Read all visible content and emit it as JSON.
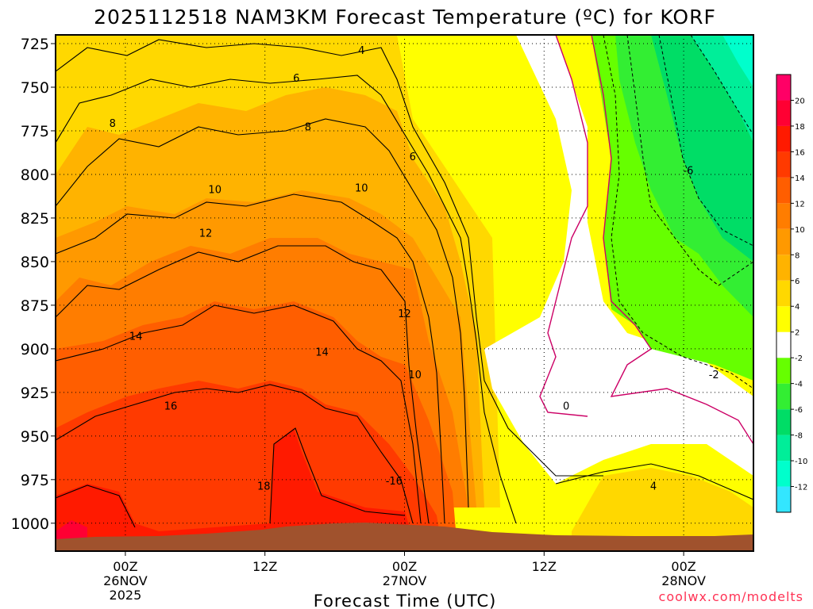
{
  "chart_data": {
    "type": "heatmap",
    "title": "2025112518 NAM3KM Forecast Temperature (ºC) for KORF",
    "xlabel": "Forecast Time (UTC)",
    "ylabel": "",
    "x_ticks": [
      {
        "hour": 6,
        "lines": [
          "00Z",
          "26NOV",
          "2025"
        ]
      },
      {
        "hour": 18,
        "lines": [
          "12Z"
        ]
      },
      {
        "hour": 30,
        "lines": [
          "00Z",
          "27NOV"
        ]
      },
      {
        "hour": 42,
        "lines": [
          "12Z"
        ]
      },
      {
        "hour": 54,
        "lines": [
          "00Z",
          "28NOV"
        ]
      }
    ],
    "xlim": [
      0,
      60
    ],
    "y_ticks": [
      725,
      750,
      775,
      800,
      825,
      850,
      875,
      900,
      925,
      950,
      975,
      1000
    ],
    "ylim": [
      1016,
      720
    ],
    "grid": true,
    "colorbar": {
      "levels": [
        -14,
        -12,
        -10,
        -8,
        -6,
        -4,
        -2,
        2,
        4,
        6,
        8,
        10,
        12,
        14,
        16,
        18,
        20,
        22
      ],
      "labels": [
        "-12",
        "-10",
        "-8",
        "-6",
        "-4",
        "-2",
        "2",
        "4",
        "6",
        "8",
        "10",
        "12",
        "14",
        "16",
        "18",
        "20"
      ],
      "colors": [
        "#33e6ff",
        "#00ffcc",
        "#00ee99",
        "#00dd66",
        "#33ee33",
        "#66ff00",
        "#ffffff",
        "#ffff00",
        "#ffd800",
        "#ffb300",
        "#ff9900",
        "#ff7d00",
        "#ff5e00",
        "#ff3a00",
        "#ff1a00",
        "#ff0033",
        "#ff0066"
      ]
    },
    "contour_labels": [
      {
        "text": "4",
        "x": 26.3,
        "y": 729
      },
      {
        "text": "6",
        "x": 20.7,
        "y": 745
      },
      {
        "text": "8",
        "x": 4.9,
        "y": 771
      },
      {
        "text": "8",
        "x": 21.7,
        "y": 773
      },
      {
        "text": "6",
        "x": 30.7,
        "y": 790
      },
      {
        "text": "10",
        "x": 13.7,
        "y": 809
      },
      {
        "text": "10",
        "x": 26.3,
        "y": 808
      },
      {
        "text": "12",
        "x": 12.9,
        "y": 834
      },
      {
        "text": "12",
        "x": 30.0,
        "y": 880
      },
      {
        "text": "14",
        "x": 6.9,
        "y": 893
      },
      {
        "text": "14",
        "x": 22.9,
        "y": 902
      },
      {
        "text": "10",
        "x": 30.9,
        "y": 915
      },
      {
        "text": "16",
        "x": 9.9,
        "y": 933
      },
      {
        "text": "-6",
        "x": 54.4,
        "y": 798
      },
      {
        "text": "-2",
        "x": 56.6,
        "y": 915
      },
      {
        "text": "0",
        "x": 43.9,
        "y": 933
      },
      {
        "text": "4",
        "x": 51.4,
        "y": 979
      },
      {
        "text": "-16",
        "x": 29.1,
        "y": 976
      },
      {
        "text": "18",
        "x": 17.9,
        "y": 979
      }
    ],
    "watermark": "coolwx.com/modelts"
  }
}
